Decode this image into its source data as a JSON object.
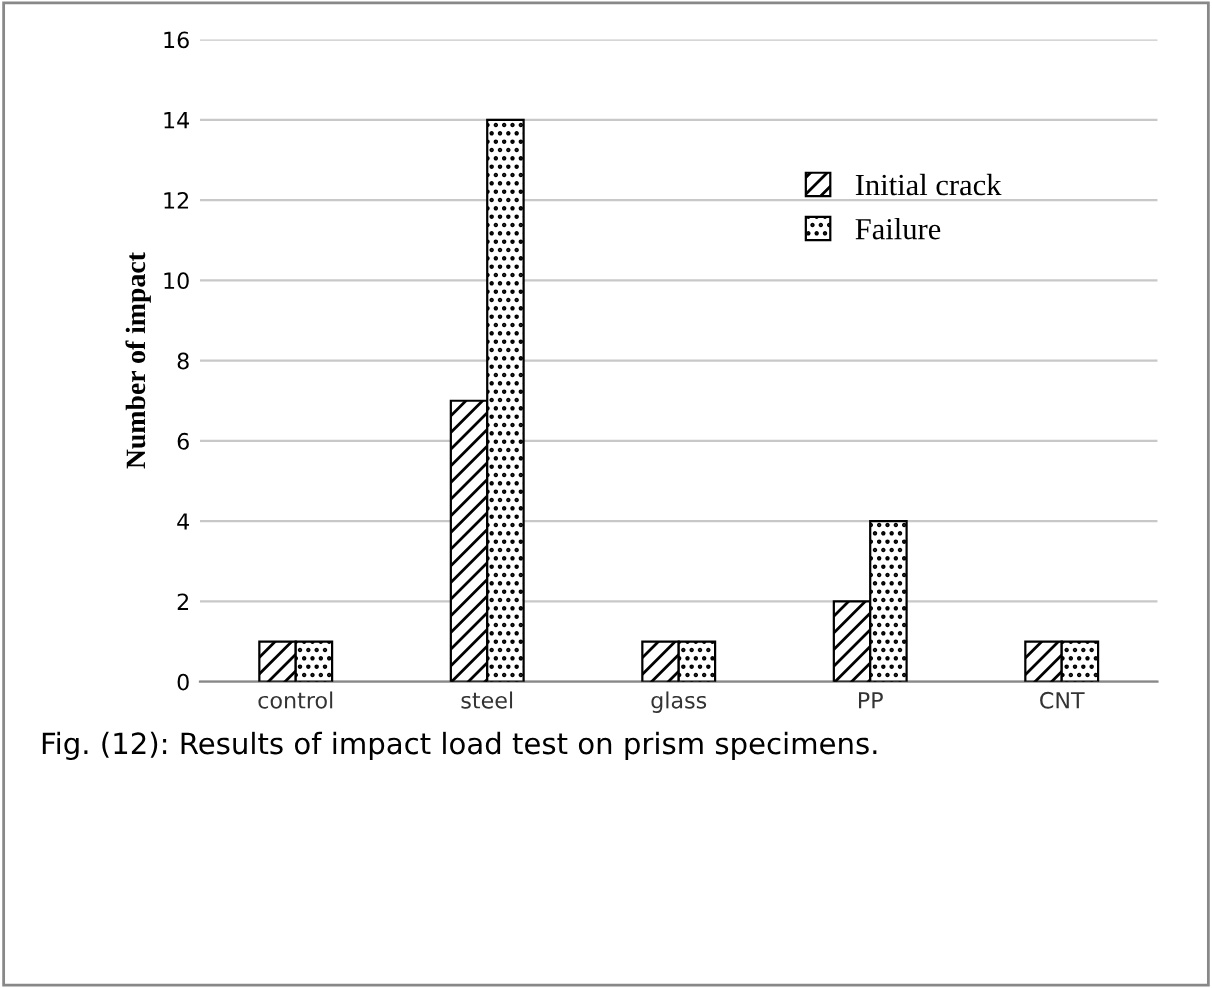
{
  "chart_data": {
    "type": "bar",
    "ylabel": "Number of impact",
    "categories": [
      "control",
      "steel",
      "glass",
      "PP",
      "CNT"
    ],
    "series": [
      {
        "name": "Initial crack",
        "color": "#000000",
        "values": [
          1,
          7,
          1,
          2,
          1
        ]
      },
      {
        "name": "Failure",
        "color": "#000000",
        "values": [
          1,
          14,
          1,
          4,
          1
        ]
      }
    ],
    "ylim": [
      0,
      16
    ],
    "yticks": [
      0,
      2,
      4,
      6,
      8,
      10,
      12,
      14,
      16
    ],
    "grid": "y",
    "legend": "top right",
    "annotations": [
      "Fig. (12): Results of impact load test on prism specimens."
    ]
  }
}
